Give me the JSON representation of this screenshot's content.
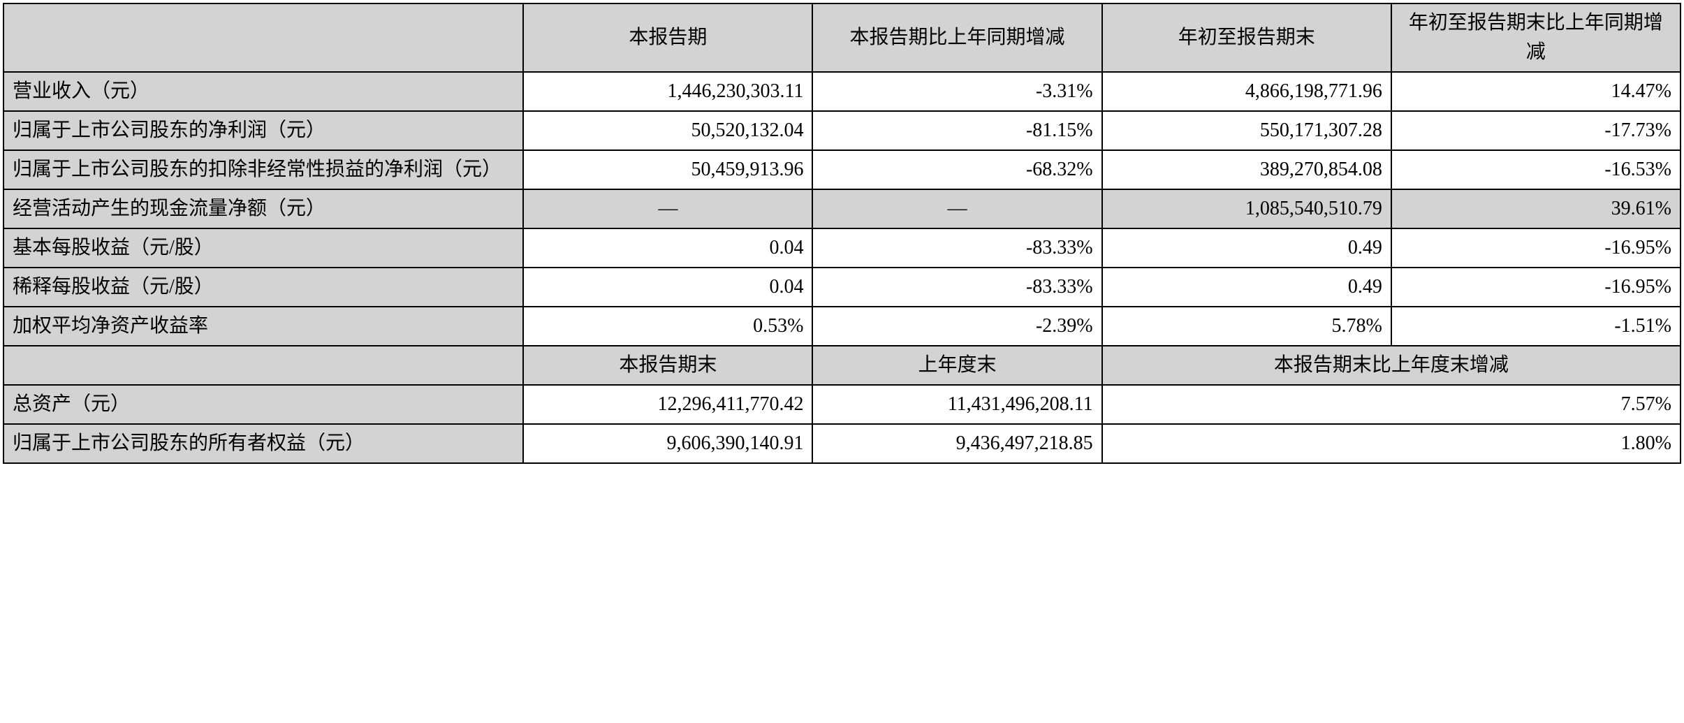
{
  "table": {
    "type": "table",
    "background_color": "#ffffff",
    "header_bg": "#d3d3d3",
    "border_color": "#000000",
    "font_size": 28,
    "columns": {
      "col1_width": "31%",
      "col2_width": "17.25%",
      "col3_width": "17.25%",
      "col4_width": "17.25%",
      "col5_width": "17.25%"
    },
    "headers_row1": {
      "h1": "",
      "h2": "本报告期",
      "h3": "本报告期比上年同期增减",
      "h4": "年初至报告期末",
      "h5": "年初至报告期末比上年同期增减"
    },
    "rows": [
      {
        "label": "营业收入（元）",
        "c1": "1,446,230,303.11",
        "c2": "-3.31%",
        "c3": "4,866,198,771.96",
        "c4": "14.47%",
        "gray": false
      },
      {
        "label": "归属于上市公司股东的净利润（元）",
        "c1": "50,520,132.04",
        "c2": "-81.15%",
        "c3": "550,171,307.28",
        "c4": "-17.73%",
        "gray": false
      },
      {
        "label": "归属于上市公司股东的扣除非经常性损益的净利润（元）",
        "c1": "50,459,913.96",
        "c2": "-68.32%",
        "c3": "389,270,854.08",
        "c4": "-16.53%",
        "gray": false
      },
      {
        "label": "经营活动产生的现金流量净额（元）",
        "c1": "—",
        "c2": "—",
        "c3": "1,085,540,510.79",
        "c4": "39.61%",
        "gray": true
      },
      {
        "label": "基本每股收益（元/股）",
        "c1": "0.04",
        "c2": "-83.33%",
        "c3": "0.49",
        "c4": "-16.95%",
        "gray": false
      },
      {
        "label": "稀释每股收益（元/股）",
        "c1": "0.04",
        "c2": "-83.33%",
        "c3": "0.49",
        "c4": "-16.95%",
        "gray": false
      },
      {
        "label": "加权平均净资产收益率",
        "c1": "0.53%",
        "c2": "-2.39%",
        "c3": "5.78%",
        "c4": "-1.51%",
        "gray": false
      }
    ],
    "headers_row2": {
      "h1": "",
      "h2": "本报告期末",
      "h3": "上年度末",
      "h4": "本报告期末比上年度末增减"
    },
    "rows2": [
      {
        "label": "总资产（元）",
        "c1": "12,296,411,770.42",
        "c2": "11,431,496,208.11",
        "c3": "7.57%"
      },
      {
        "label": "归属于上市公司股东的所有者权益（元）",
        "c1": "9,606,390,140.91",
        "c2": "9,436,497,218.85",
        "c3": "1.80%"
      }
    ]
  }
}
